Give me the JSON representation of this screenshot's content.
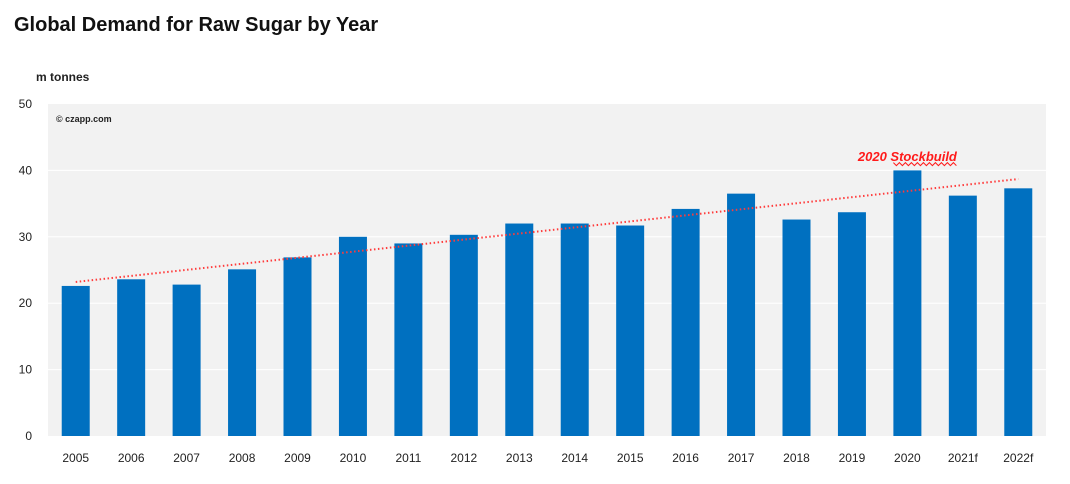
{
  "chart_data": {
    "type": "bar",
    "title": "Global Demand for Raw Sugar by Year",
    "ylabel": "m tonnes",
    "xlabel": "",
    "ylim": [
      0,
      50
    ],
    "yticks": [
      0,
      10,
      20,
      30,
      40,
      50
    ],
    "grid": true,
    "watermark": "© czapp.com",
    "categories": [
      "2005",
      "2006",
      "2007",
      "2008",
      "2009",
      "2010",
      "2011",
      "2012",
      "2013",
      "2014",
      "2015",
      "2016",
      "2017",
      "2018",
      "2019",
      "2020",
      "2021f",
      "2022f"
    ],
    "values": [
      22.6,
      23.6,
      22.8,
      25.1,
      26.9,
      30.0,
      29.0,
      30.3,
      32.0,
      32.0,
      31.7,
      34.2,
      36.5,
      32.6,
      33.7,
      40.0,
      36.2,
      37.3
    ],
    "trendline": {
      "style": "dotted",
      "color": "#ff3b3b",
      "start": 23.2,
      "end": 38.7
    },
    "annotation": {
      "text": "2020 Stockbuild",
      "category": "2020",
      "y": 42.0
    },
    "colors": {
      "bar": "#0070c0",
      "plot_bg": "#f2f2f2",
      "grid": "#ffffff"
    }
  }
}
